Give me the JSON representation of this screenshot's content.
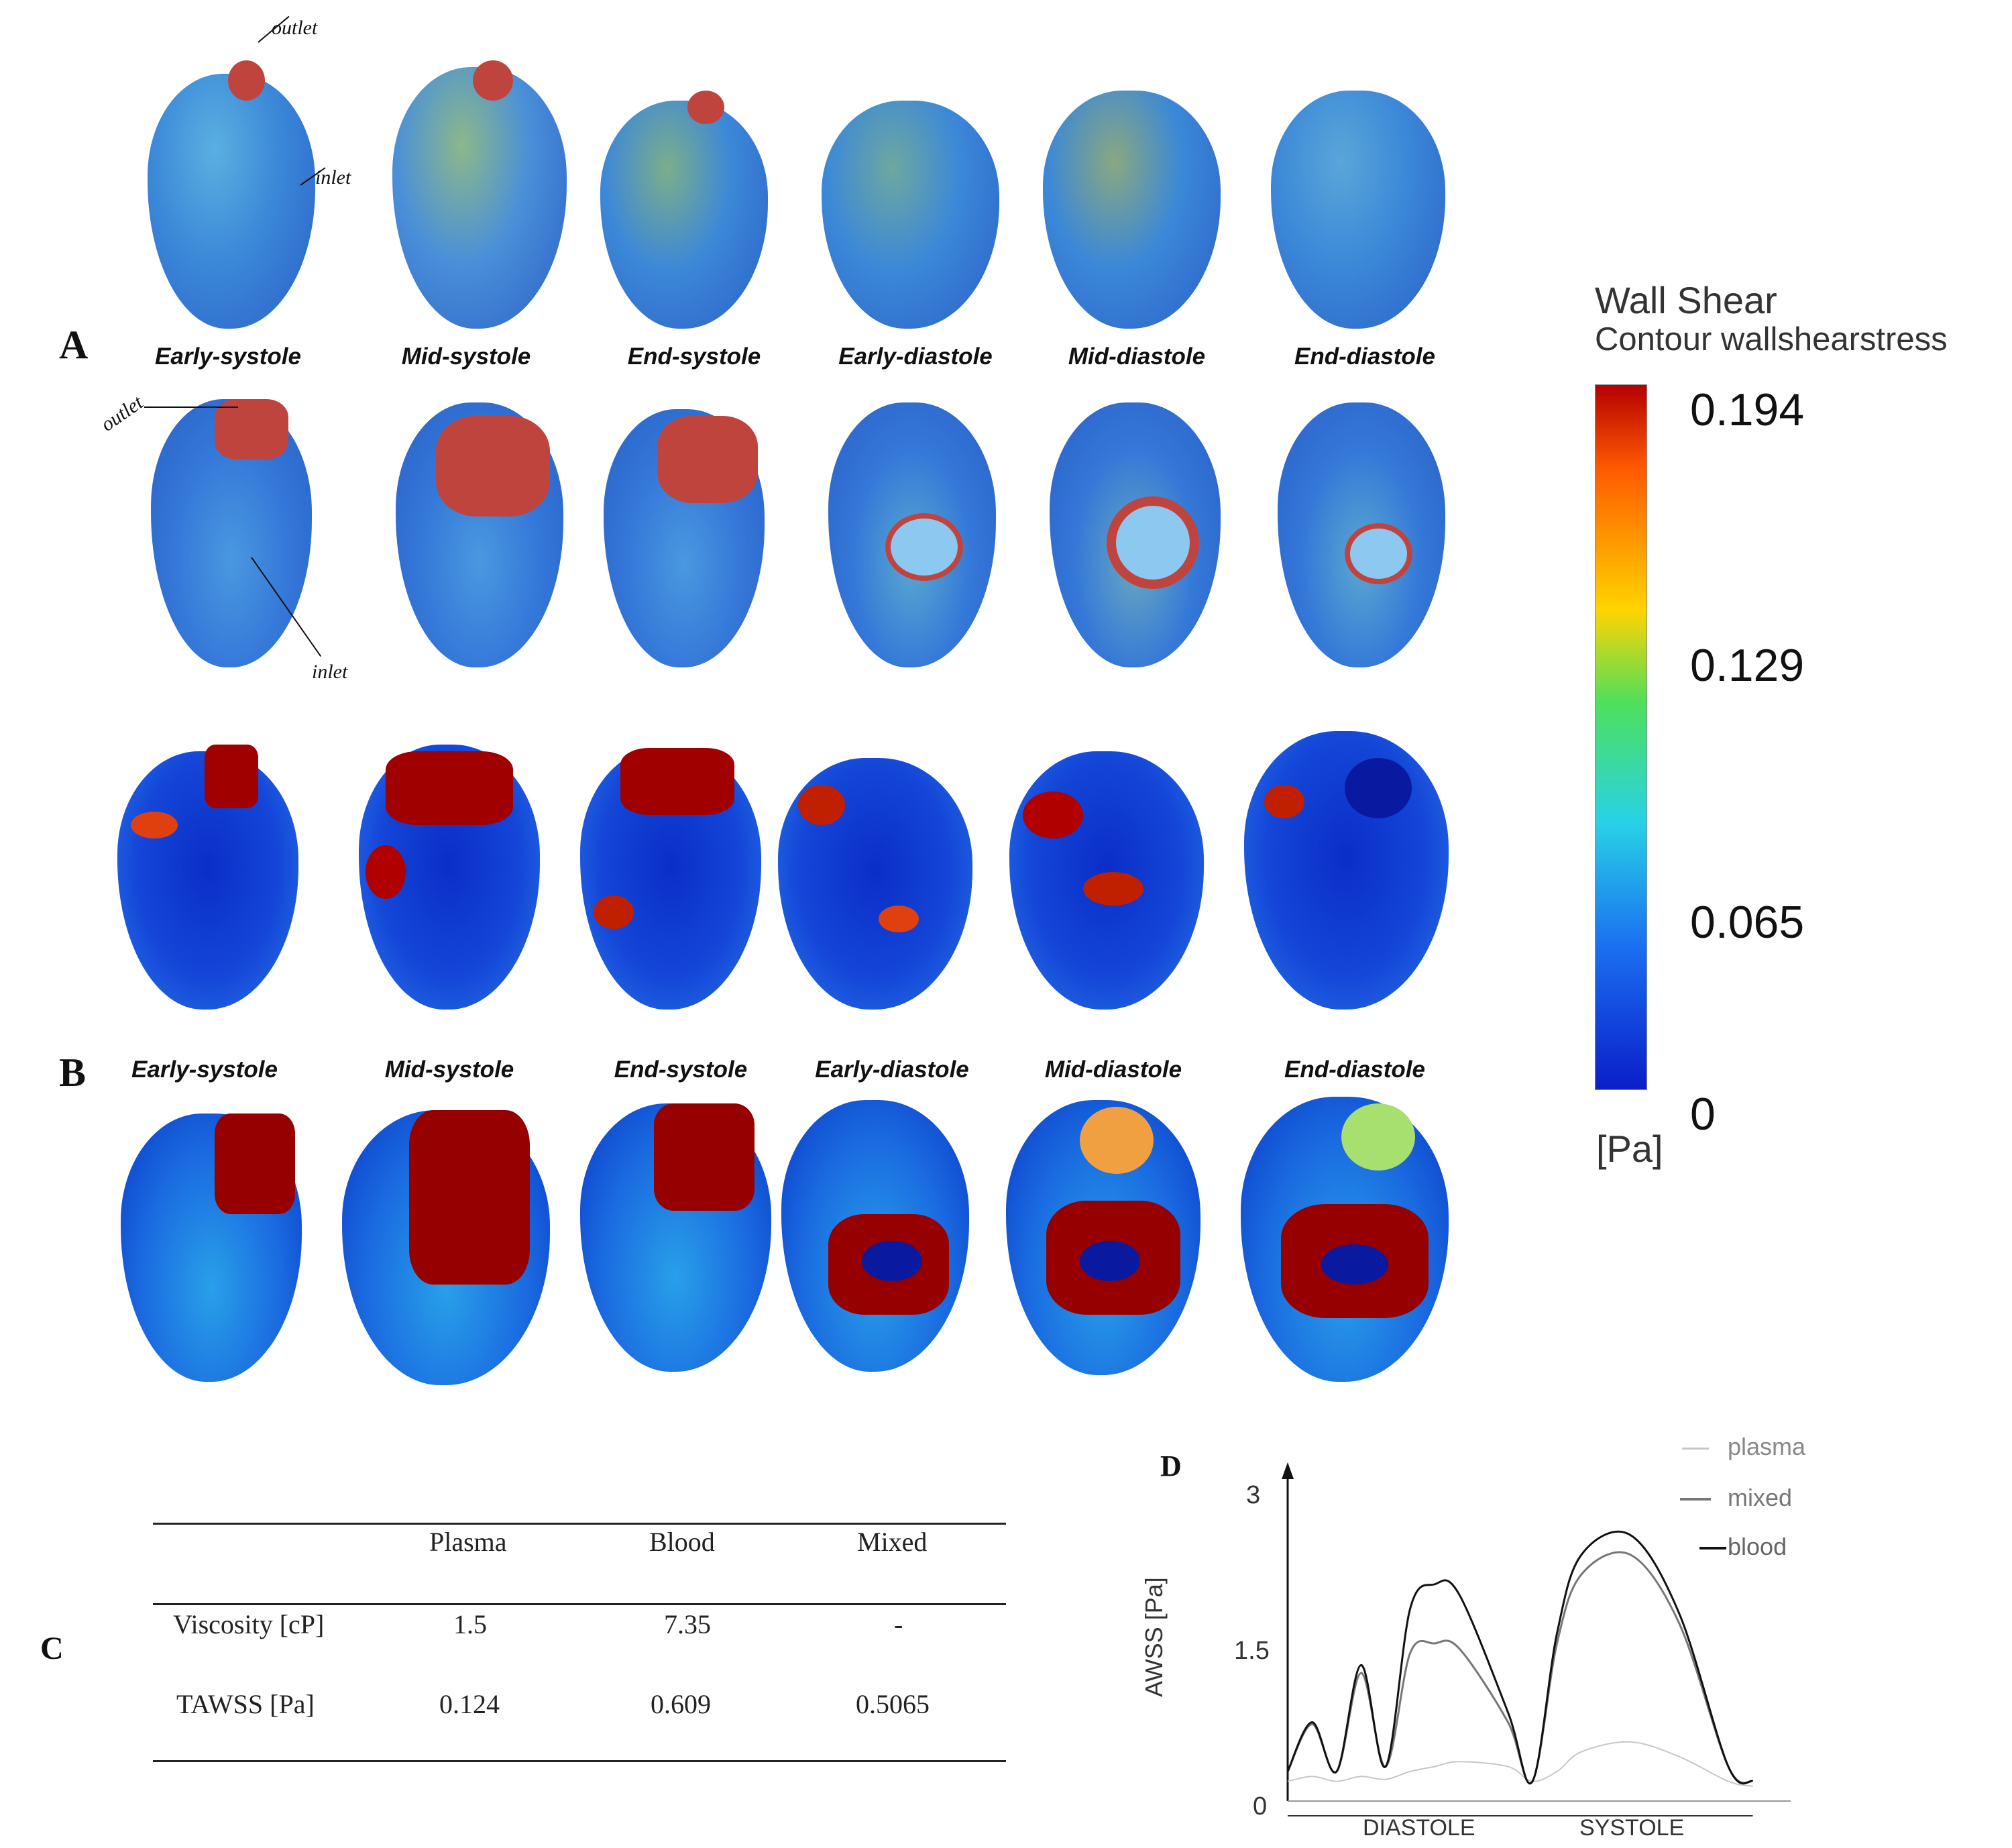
{
  "panels": {
    "a_letter": "A",
    "b_letter": "B",
    "c_letter": "C",
    "d_letter": "D"
  },
  "phases": [
    "Early-systole",
    "Mid-systole",
    "End-systole",
    "Early-diastole",
    "Mid-diastole",
    "End-diastole"
  ],
  "annotations": {
    "outlet_top": "outlet",
    "inlet_top": "inlet",
    "outlet_row2": "outlet",
    "inlet_row2": "inlet"
  },
  "colorbar": {
    "title": "Wall Shear",
    "subtitle": "Contour wallshearstress",
    "ticks": [
      "0.194",
      "0.129",
      "0.065",
      "0"
    ],
    "unit": "[Pa]",
    "colors": [
      "#b40000",
      "#ff5a00",
      "#ffd400",
      "#4fe05a",
      "#28d2e6",
      "#1a6ef0",
      "#0a1ec8"
    ]
  },
  "table": {
    "headers": [
      "",
      "Plasma",
      "Blood",
      "Mixed"
    ],
    "rows": [
      [
        "Viscosity [cP]",
        "1.5",
        "7.35",
        "-"
      ],
      [
        "TAWSS [Pa]",
        "0.124",
        "0.609",
        "0.5065"
      ]
    ]
  },
  "chart_data": {
    "type": "line",
    "title": "",
    "ylabel": "AWSS [Pa]",
    "xlabel": "",
    "x_regions": [
      "DIASTOLE",
      "SYSTOLE"
    ],
    "yticks": [
      "0",
      "1.5",
      "3"
    ],
    "ylim": [
      0,
      3.2
    ],
    "xlim": [
      0,
      1
    ],
    "x": [
      0.0,
      0.05,
      0.1,
      0.15,
      0.2,
      0.25,
      0.3,
      0.35,
      0.45,
      0.5,
      0.55,
      0.6,
      0.7,
      0.8,
      0.9,
      0.95
    ],
    "series": [
      {
        "name": "plasma",
        "color": "#c8c8c8",
        "values": [
          0.2,
          0.25,
          0.2,
          0.25,
          0.22,
          0.3,
          0.35,
          0.4,
          0.35,
          0.2,
          0.3,
          0.5,
          0.6,
          0.45,
          0.2,
          0.15
        ]
      },
      {
        "name": "mixed",
        "color": "#777777",
        "values": [
          0.3,
          0.78,
          0.3,
          1.3,
          0.35,
          1.5,
          1.6,
          1.55,
          0.8,
          0.2,
          1.6,
          2.3,
          2.5,
          1.8,
          0.35,
          0.2
        ]
      },
      {
        "name": "blood",
        "color": "#111111",
        "values": [
          0.3,
          0.8,
          0.3,
          1.38,
          0.35,
          1.95,
          2.2,
          2.1,
          0.9,
          0.2,
          1.7,
          2.5,
          2.7,
          1.9,
          0.35,
          0.2
        ]
      }
    ],
    "legend": "top-right"
  }
}
